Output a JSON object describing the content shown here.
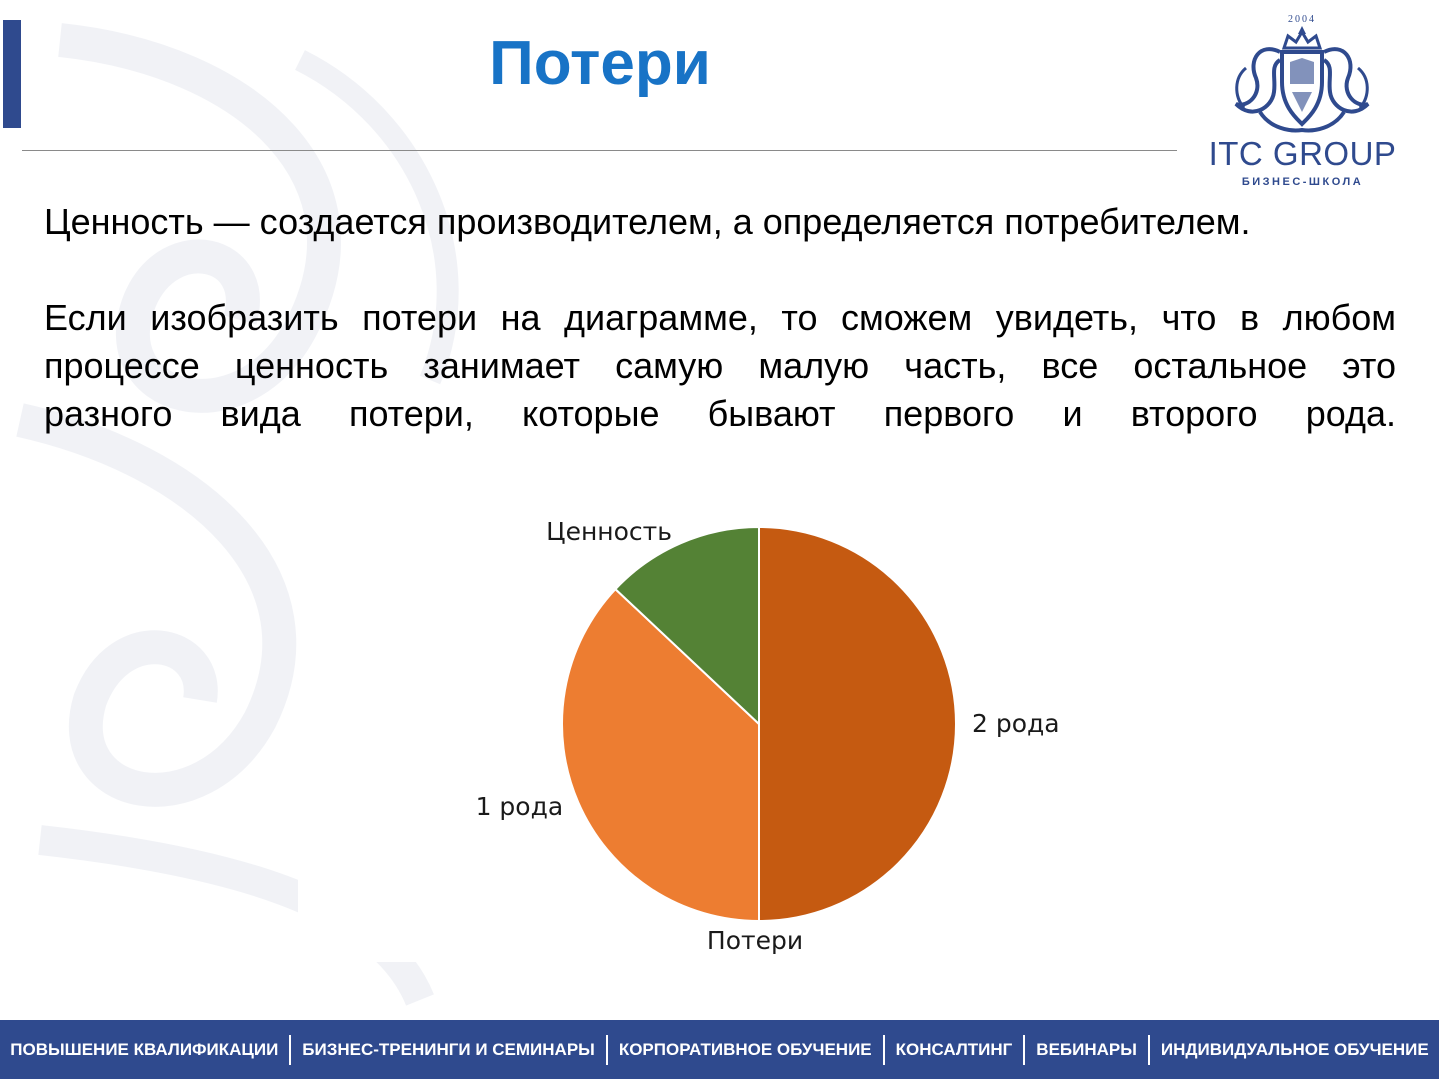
{
  "slide": {
    "title": "Потери",
    "paragraph1": "Ценность — создается производителем, а определяется потребителем.",
    "paragraph2_lines": [
      "Если изобразить потери на диаграмме, то сможем увидеть, что в любом",
      "процессе ценность занимает самую малую часть, все остальное это",
      "разного вида потери, которые бывают первого и второго рода."
    ]
  },
  "logo": {
    "name": "ITC GROUP",
    "subtitle": "БИЗНЕС-ШКОЛА",
    "year": "2004",
    "color": "#2f4a8e"
  },
  "footer": {
    "items": [
      "ПОВЫШЕНИЕ КВАЛИФИКАЦИИ",
      "БИЗНЕС-ТРЕНИНГИ И СЕМИНАРЫ",
      "КОРПОРАТИВНОЕ ОБУЧЕНИЕ",
      "КОНСАЛТИНГ",
      "ВЕБИНАРЫ",
      "ИНДИВИДУАЛЬНОЕ ОБУЧЕНИЕ"
    ]
  },
  "colors": {
    "title": "#1873c6",
    "accent": "#2f4a8e"
  },
  "chart_data": {
    "type": "pie",
    "title": "Потери",
    "title_position": "bottom",
    "categories": [
      "2 рода",
      "1 рода",
      "Ценность"
    ],
    "values": [
      50,
      37,
      13
    ],
    "colors": [
      "#c55a11",
      "#ed7d31",
      "#548235"
    ],
    "start_angle_deg": 0,
    "direction": "clockwise",
    "legend": "none"
  }
}
